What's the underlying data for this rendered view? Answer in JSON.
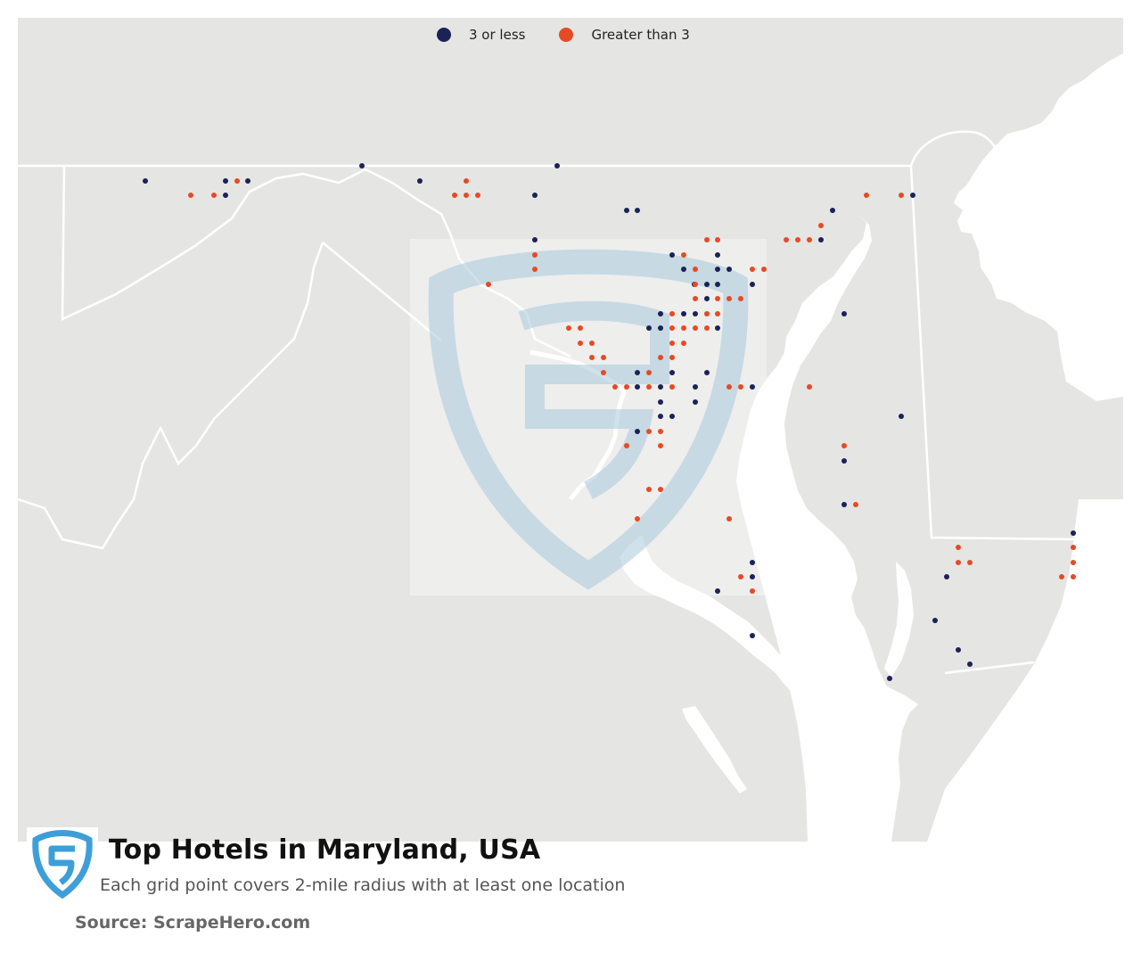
{
  "title": "Top Hotels in Maryland, USA",
  "subtitle": "Each grid point covers 2-mile radius with at least one location",
  "source": "Source: ScrapeHero.com",
  "legend": [
    {
      "label": "3 or less",
      "color": "#1b2257"
    },
    {
      "label": "Greater than 3",
      "color": "#e64a24"
    }
  ],
  "colors": {
    "land": "#e5e5e4",
    "water": "#ffffff",
    "border": "#ffffff",
    "watermark": "#a9c9dc",
    "logo": "#3e9fd8"
  },
  "logo_icon": "scrapehero-shield-icon",
  "map_points": {
    "low": [
      [
        163,
        203
      ],
      [
        253,
        203
      ],
      [
        278,
        203
      ],
      [
        253,
        219
      ],
      [
        406,
        186
      ],
      [
        471,
        203
      ],
      [
        625,
        186
      ],
      [
        600,
        219
      ],
      [
        703,
        236
      ],
      [
        715,
        236
      ],
      [
        600,
        269
      ],
      [
        754,
        286
      ],
      [
        767,
        302
      ],
      [
        805,
        286
      ],
      [
        818,
        302
      ],
      [
        805,
        302
      ],
      [
        779,
        319
      ],
      [
        805,
        319
      ],
      [
        793,
        319
      ],
      [
        844,
        319
      ],
      [
        767,
        352
      ],
      [
        780,
        352
      ],
      [
        741,
        352
      ],
      [
        793,
        335
      ],
      [
        728,
        368
      ],
      [
        741,
        368
      ],
      [
        805,
        368
      ],
      [
        715,
        418
      ],
      [
        793,
        418
      ],
      [
        715,
        434
      ],
      [
        741,
        434
      ],
      [
        780,
        434
      ],
      [
        754,
        418
      ],
      [
        741,
        451
      ],
      [
        780,
        451
      ],
      [
        741,
        467
      ],
      [
        754,
        467
      ],
      [
        715,
        484
      ],
      [
        844,
        434
      ],
      [
        921,
        269
      ],
      [
        934,
        236
      ],
      [
        947,
        352
      ],
      [
        1011,
        467
      ],
      [
        947,
        517
      ],
      [
        947,
        566
      ],
      [
        1024,
        219
      ],
      [
        1062,
        647
      ],
      [
        1049,
        696
      ],
      [
        1075,
        729
      ],
      [
        1088,
        745
      ],
      [
        998,
        761
      ],
      [
        805,
        663
      ],
      [
        844,
        647
      ],
      [
        844,
        631
      ],
      [
        844,
        713
      ],
      [
        1204,
        598
      ]
    ],
    "high": [
      [
        214,
        219
      ],
      [
        240,
        219
      ],
      [
        266,
        203
      ],
      [
        523,
        203
      ],
      [
        510,
        219
      ],
      [
        523,
        219
      ],
      [
        536,
        219
      ],
      [
        600,
        286
      ],
      [
        600,
        302
      ],
      [
        548,
        319
      ],
      [
        793,
        269
      ],
      [
        805,
        269
      ],
      [
        767,
        286
      ],
      [
        780,
        302
      ],
      [
        844,
        302
      ],
      [
        857,
        302
      ],
      [
        780,
        319
      ],
      [
        780,
        335
      ],
      [
        805,
        335
      ],
      [
        818,
        335
      ],
      [
        831,
        335
      ],
      [
        754,
        352
      ],
      [
        793,
        352
      ],
      [
        805,
        352
      ],
      [
        754,
        368
      ],
      [
        767,
        368
      ],
      [
        780,
        368
      ],
      [
        793,
        368
      ],
      [
        638,
        368
      ],
      [
        651,
        368
      ],
      [
        651,
        385
      ],
      [
        664,
        385
      ],
      [
        754,
        385
      ],
      [
        767,
        385
      ],
      [
        741,
        401
      ],
      [
        754,
        401
      ],
      [
        664,
        401
      ],
      [
        677,
        401
      ],
      [
        677,
        418
      ],
      [
        728,
        418
      ],
      [
        690,
        434
      ],
      [
        703,
        434
      ],
      [
        728,
        434
      ],
      [
        754,
        434
      ],
      [
        818,
        434
      ],
      [
        831,
        434
      ],
      [
        728,
        484
      ],
      [
        741,
        484
      ],
      [
        703,
        500
      ],
      [
        741,
        500
      ],
      [
        728,
        549
      ],
      [
        741,
        549
      ],
      [
        715,
        582
      ],
      [
        818,
        582
      ],
      [
        831,
        647
      ],
      [
        844,
        663
      ],
      [
        882,
        269
      ],
      [
        895,
        269
      ],
      [
        908,
        269
      ],
      [
        921,
        253
      ],
      [
        972,
        219
      ],
      [
        1011,
        219
      ],
      [
        908,
        434
      ],
      [
        947,
        500
      ],
      [
        960,
        566
      ],
      [
        1075,
        614
      ],
      [
        1075,
        631
      ],
      [
        1088,
        631
      ],
      [
        1204,
        614
      ],
      [
        1204,
        631
      ],
      [
        1191,
        647
      ],
      [
        1204,
        647
      ]
    ]
  }
}
